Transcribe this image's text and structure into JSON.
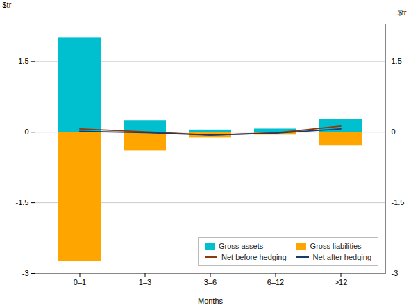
{
  "chart_data": {
    "type": "bar",
    "xlabel": "Months",
    "ylabel": "$tr",
    "y2label": "$tr",
    "categories": [
      "0–1",
      "1–3",
      "3–6",
      "6–12",
      ">12"
    ],
    "series": [
      {
        "name": "Gross assets",
        "type": "bar",
        "color": "#00BFCF",
        "values": [
          2.0,
          0.25,
          0.05,
          0.07,
          0.27
        ]
      },
      {
        "name": "Gross liabilities",
        "type": "bar",
        "color": "#FFA500",
        "values": [
          -2.75,
          -0.4,
          -0.12,
          -0.06,
          -0.28
        ]
      },
      {
        "name": "Net before hedging",
        "type": "line",
        "color": "#8B3A0F",
        "values": [
          0.07,
          0.01,
          -0.06,
          -0.015,
          0.13
        ]
      },
      {
        "name": "Net after hedging",
        "type": "line",
        "color": "#1B3A6B",
        "values": [
          0.02,
          -0.01,
          -0.06,
          -0.02,
          0.07
        ]
      }
    ],
    "ylim": [
      -3.0,
      2.3
    ],
    "yticks": [
      -3,
      -1.5,
      0,
      1.5
    ],
    "y2lim": [
      -3.0,
      2.3
    ],
    "y2ticks": [
      -3,
      -1.5,
      0,
      1.5
    ],
    "grid": true,
    "legend": "lower right"
  }
}
